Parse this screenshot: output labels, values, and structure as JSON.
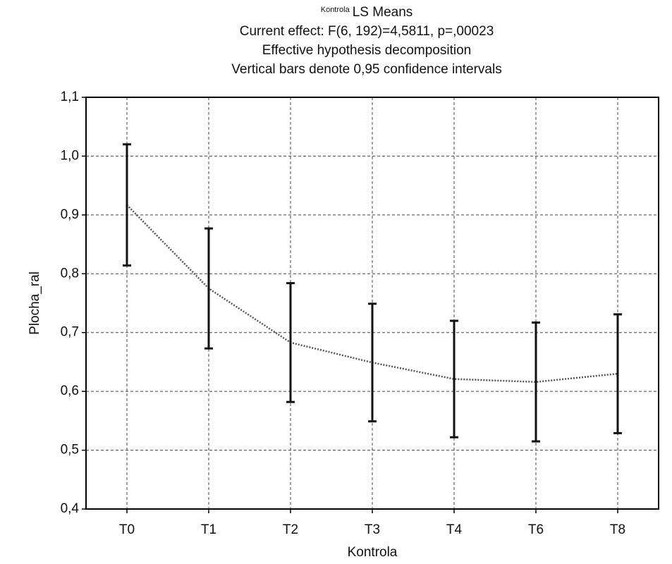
{
  "chart_data": {
    "type": "line",
    "title_prefix": "Kontrola",
    "title": "LS Means",
    "subtitles": [
      "Current effect: F(6, 192)=4,5811, p=,00023",
      "Effective hypothesis decomposition",
      "Vertical bars denote 0,95 confidence intervals"
    ],
    "x_label": "Kontrola",
    "y_label": "Plocha_ral",
    "categories": [
      "T0",
      "T1",
      "T2",
      "T3",
      "T4",
      "T6",
      "T8"
    ],
    "series": [
      {
        "color": "#555555",
        "values": [
          0.917,
          0.775,
          0.683,
          0.649,
          0.621,
          0.616,
          0.63
        ],
        "errors": [
          0.103,
          0.102,
          0.101,
          0.1,
          0.099,
          0.101,
          0.101
        ]
      }
    ],
    "ylim": [
      0.4,
      1.1
    ],
    "yticks": [
      {
        "value": 0.4,
        "label": "0,4"
      },
      {
        "value": 0.5,
        "label": "0,5"
      },
      {
        "value": 0.6,
        "label": "0,6"
      },
      {
        "value": 0.7,
        "label": "0,7"
      },
      {
        "value": 0.8,
        "label": "0,8"
      },
      {
        "value": 0.9,
        "label": "0,9"
      },
      {
        "value": 1.0,
        "label": "1,0"
      },
      {
        "value": 1.1,
        "label": "1,1"
      }
    ],
    "grid": true
  }
}
